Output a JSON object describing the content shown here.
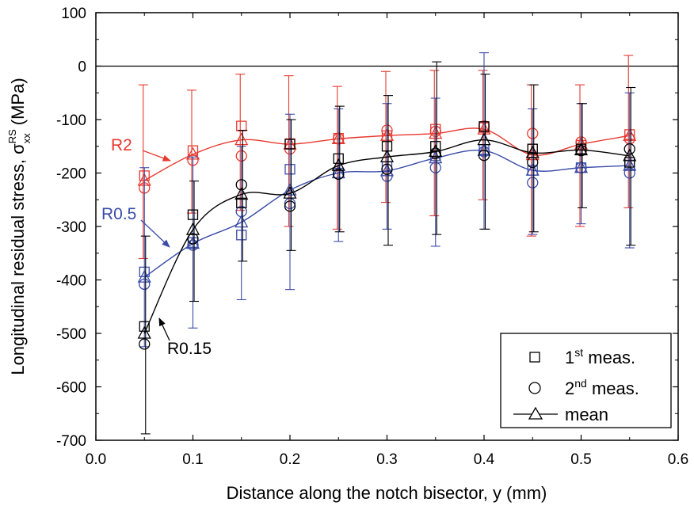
{
  "chart_data": {
    "type": "scatter",
    "xlabel": "Distance along the notch bisector, y (mm)",
    "ylabel": {
      "main": "Longitudinal residual stress, σ",
      "sup": "RS",
      "sub": "xx",
      "unit": "(MPa)"
    },
    "xlim": [
      0.0,
      0.6
    ],
    "ylim": [
      -700,
      100
    ],
    "xticks": [
      "0.0",
      "0.1",
      "0.2",
      "0.3",
      "0.4",
      "0.5",
      "0.6"
    ],
    "yticks": [
      "100",
      "0",
      "-100",
      "-200",
      "-300",
      "-400",
      "-500",
      "-600",
      "-700"
    ],
    "grid": false,
    "reference_line": 0,
    "legend": {
      "position": "bottom-right",
      "entries": [
        {
          "marker": "square",
          "pre": "1",
          "sup": "st",
          "post": " meas."
        },
        {
          "marker": "circle",
          "pre": "2",
          "sup": "nd",
          "post": " meas."
        },
        {
          "marker": "triangle",
          "pre": "",
          "sup": "",
          "post": "mean"
        }
      ]
    },
    "x": [
      0.05,
      0.1,
      0.15,
      0.2,
      0.25,
      0.3,
      0.35,
      0.4,
      0.45,
      0.5,
      0.55
    ],
    "groups": [
      {
        "label": "R2",
        "color": "#e8392f",
        "first_meas": [
          -205,
          -158,
          -112,
          -145,
          -135,
          -130,
          -118,
          -115,
          -155,
          -148,
          -128
        ],
        "second_meas": [
          -228,
          -176,
          -168,
          -155,
          -136,
          -120,
          -122,
          -112,
          -126,
          -142,
          -136
        ],
        "mean": [
          -214,
          -165,
          -138,
          -146,
          -136,
          -130,
          -126,
          -118,
          -166,
          -146,
          -130
        ],
        "err_upper": [
          -35,
          -45,
          -15,
          -18,
          -38,
          -10,
          -8,
          -8,
          -35,
          -35,
          20
        ],
        "err_lower": [
          -360,
          -275,
          -270,
          -300,
          -305,
          -255,
          -280,
          -250,
          -318,
          -300,
          -265
        ]
      },
      {
        "label": "R0.5",
        "color": "#3a4ba8",
        "first_meas": [
          -385,
          -330,
          -316,
          -193,
          -200,
          -188,
          -168,
          -156,
          -195,
          -190,
          -185
        ],
        "second_meas": [
          -408,
          -335,
          -272,
          -257,
          -202,
          -206,
          -190,
          -160,
          -218,
          -190,
          -200
        ],
        "mean": [
          -395,
          -332,
          -292,
          -232,
          -200,
          -196,
          -172,
          -158,
          -195,
          -190,
          -186
        ],
        "err_upper": [
          -190,
          -170,
          -150,
          -90,
          -80,
          -70,
          -60,
          25,
          -80,
          -70,
          -50
        ],
        "err_lower": [
          -525,
          -490,
          -437,
          -418,
          -328,
          -305,
          -337,
          -305,
          -315,
          -295,
          -340
        ]
      },
      {
        "label": "R0.15",
        "color": "#000000",
        "first_meas": [
          -487,
          -278,
          -256,
          -146,
          -173,
          -150,
          -150,
          -113,
          -155,
          -155,
          -180
        ],
        "second_meas": [
          -520,
          -323,
          -222,
          -262,
          -202,
          -193,
          -163,
          -167,
          -180,
          -158,
          -155
        ],
        "mean": [
          -500,
          -306,
          -240,
          -238,
          -186,
          -170,
          -160,
          -138,
          -162,
          -157,
          -168
        ],
        "err_upper": [
          -318,
          -215,
          -120,
          -100,
          -75,
          -55,
          8,
          -15,
          -35,
          -70,
          -40
        ],
        "err_lower": [
          -688,
          -440,
          -365,
          -345,
          -310,
          -335,
          -315,
          -305,
          -310,
          -265,
          -335
        ]
      }
    ],
    "annotations": [
      {
        "text": "R2",
        "color": "#e8392f",
        "arrow_to": [
          0.082,
          -182
        ]
      },
      {
        "text": "R0.5",
        "color": "#3a4ba8",
        "arrow_to": [
          0.079,
          -345
        ]
      },
      {
        "text": "R0.15",
        "color": "#000000",
        "arrow_to": [
          0.067,
          -465
        ]
      }
    ]
  }
}
